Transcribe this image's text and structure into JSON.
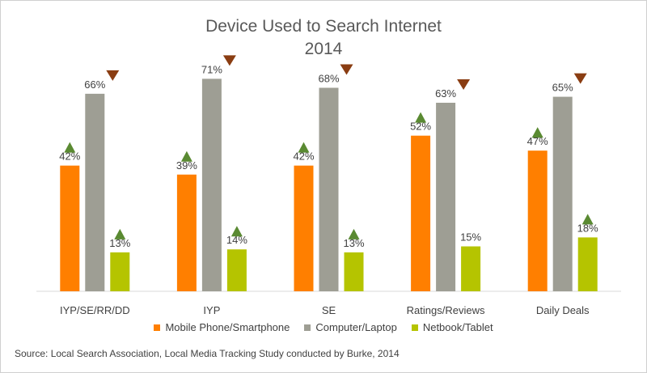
{
  "chart_data": {
    "type": "bar",
    "title": "Device Used to Search Internet",
    "subtitle": "2014",
    "categories": [
      "IYP/SE/RR/DD",
      "IYP",
      "SE",
      "Ratings/Reviews",
      "Daily Deals"
    ],
    "series": [
      {
        "name": "Mobile Phone/Smartphone",
        "color": "#ff7f00",
        "values": [
          42,
          39,
          42,
          52,
          47
        ],
        "labels": [
          "42%",
          "39%",
          "42%",
          "52%",
          "47%"
        ],
        "trend": [
          "up",
          "up",
          "up",
          "up",
          "up"
        ]
      },
      {
        "name": "Computer/Laptop",
        "color": "#9e9e94",
        "values": [
          66,
          71,
          68,
          63,
          65
        ],
        "labels": [
          "66%",
          "71%",
          "68%",
          "63%",
          "65%"
        ],
        "trend": [
          "down",
          "down",
          "down",
          "down",
          "down"
        ]
      },
      {
        "name": "Netbook/Tablet",
        "color": "#b5c400",
        "values": [
          13,
          14,
          13,
          15,
          18
        ],
        "labels": [
          "13%",
          "14%",
          "13%",
          "15%",
          "18%"
        ],
        "trend": [
          "up",
          "up",
          "up",
          "none",
          "up"
        ]
      }
    ],
    "ylim": [
      0,
      73
    ],
    "grid": false,
    "legend": "bottom",
    "trend_colors": {
      "up": "#5a8a32",
      "down": "#8a3d12"
    }
  },
  "source": "Source: Local Search Association, Local Media Tracking Study conducted by Burke, 2014"
}
